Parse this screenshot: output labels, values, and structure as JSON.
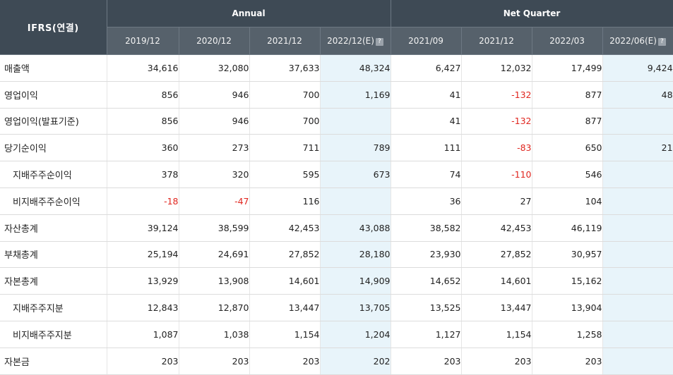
{
  "header": {
    "corner": "IFRS(연결)",
    "groups": [
      {
        "label": "Annual"
      },
      {
        "label": "Net Quarter"
      }
    ],
    "columns": [
      "2019/12",
      "2020/12",
      "2021/12",
      "2022/12(E)",
      "2021/09",
      "2021/12",
      "2022/03",
      "2022/06(E)"
    ],
    "estimate_columns": [
      3,
      7
    ],
    "help_icon": "question-mark-icon",
    "help_glyph": "?"
  },
  "colors": {
    "header_bg": "#3e4a55",
    "subheader_bg": "#56616b",
    "estimate_bg": "#e8f4fa",
    "negative": "#e0261f"
  },
  "rows": [
    {
      "label": "매출액",
      "indent": false,
      "values": [
        "34,616",
        "32,080",
        "37,633",
        "48,324",
        "6,427",
        "12,032",
        "17,499",
        "9,424"
      ]
    },
    {
      "label": "영업이익",
      "indent": false,
      "values": [
        "856",
        "946",
        "700",
        "1,169",
        "41",
        "-132",
        "877",
        "48"
      ]
    },
    {
      "label": "영업이익(발표기준)",
      "indent": false,
      "values": [
        "856",
        "946",
        "700",
        "",
        "41",
        "-132",
        "877",
        ""
      ]
    },
    {
      "label": "당기순이익",
      "indent": false,
      "values": [
        "360",
        "273",
        "711",
        "789",
        "111",
        "-83",
        "650",
        "21"
      ]
    },
    {
      "label": "지배주주순이익",
      "indent": true,
      "values": [
        "378",
        "320",
        "595",
        "673",
        "74",
        "-110",
        "546",
        ""
      ]
    },
    {
      "label": "비지배주주순이익",
      "indent": true,
      "values": [
        "-18",
        "-47",
        "116",
        "",
        "36",
        "27",
        "104",
        ""
      ]
    },
    {
      "label": "자산총계",
      "indent": false,
      "values": [
        "39,124",
        "38,599",
        "42,453",
        "43,088",
        "38,582",
        "42,453",
        "46,119",
        ""
      ]
    },
    {
      "label": "부채총계",
      "indent": false,
      "values": [
        "25,194",
        "24,691",
        "27,852",
        "28,180",
        "23,930",
        "27,852",
        "30,957",
        ""
      ]
    },
    {
      "label": "자본총계",
      "indent": false,
      "values": [
        "13,929",
        "13,908",
        "14,601",
        "14,909",
        "14,652",
        "14,601",
        "15,162",
        ""
      ]
    },
    {
      "label": "지배주주지분",
      "indent": true,
      "values": [
        "12,843",
        "12,870",
        "13,447",
        "13,705",
        "13,525",
        "13,447",
        "13,904",
        ""
      ]
    },
    {
      "label": "비지배주주지분",
      "indent": true,
      "values": [
        "1,087",
        "1,038",
        "1,154",
        "1,204",
        "1,127",
        "1,154",
        "1,258",
        ""
      ]
    },
    {
      "label": "자본금",
      "indent": false,
      "values": [
        "203",
        "203",
        "203",
        "202",
        "203",
        "203",
        "203",
        ""
      ]
    }
  ]
}
